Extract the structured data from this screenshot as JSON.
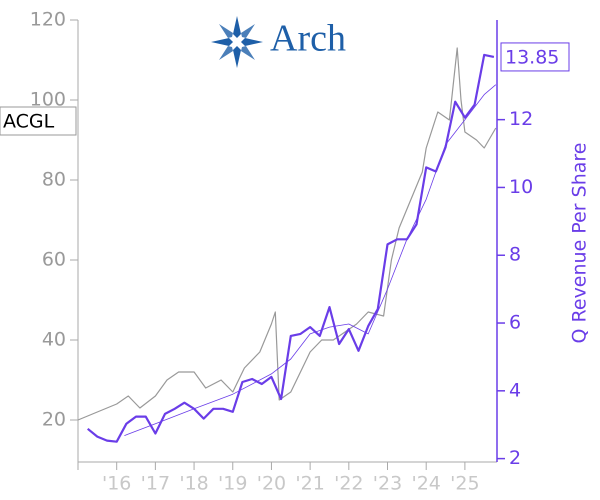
{
  "logo": "Arch",
  "chart_data": {
    "type": "line",
    "y2label": "Q Revenue Per Share",
    "xlim": [
      2015,
      2025.83
    ],
    "xticks": [
      {
        "value": 2015,
        "label": null
      },
      {
        "value": 2016,
        "label": "'16"
      },
      {
        "value": 2017,
        "label": "'17"
      },
      {
        "value": 2018,
        "label": "'18"
      },
      {
        "value": 2019,
        "label": "'19"
      },
      {
        "value": 2020,
        "label": "'20"
      },
      {
        "value": 2021,
        "label": "'21"
      },
      {
        "value": 2022,
        "label": "'22"
      },
      {
        "value": 2023,
        "label": "'23"
      },
      {
        "value": 2024,
        "label": "'24"
      },
      {
        "value": 2025,
        "label": "'25"
      }
    ],
    "ylim": [
      9.5,
      120
    ],
    "yticks": [
      20,
      40,
      60,
      80,
      100,
      120
    ],
    "y2lim": [
      1.9,
      14.94
    ],
    "y2ticks": [
      2,
      4,
      6,
      8,
      10,
      12
    ],
    "series": [
      {
        "name": "ACGL",
        "color": "#999999",
        "width": 1.2,
        "x": [
          2015.0,
          2015.5,
          2016.0,
          2016.3,
          2016.6,
          2017.0,
          2017.3,
          2017.6,
          2018.0,
          2018.3,
          2018.7,
          2019.0,
          2019.3,
          2019.7,
          2020.0,
          2020.1,
          2020.2,
          2020.5,
          2020.8,
          2021.0,
          2021.3,
          2021.6,
          2021.9,
          2022.2,
          2022.5,
          2022.9,
          2023.1,
          2023.3,
          2023.6,
          2023.9,
          2024.0,
          2024.3,
          2024.6,
          2024.8,
          2024.9,
          2025.0,
          2025.3,
          2025.5,
          2025.8
        ],
        "values": [
          20,
          22,
          24,
          26,
          23,
          26,
          30,
          32,
          32,
          28,
          30,
          27,
          33,
          37,
          44,
          47,
          25,
          27,
          33,
          37,
          40,
          40,
          42,
          44,
          47,
          46,
          60,
          68,
          75,
          82,
          88,
          97,
          95,
          113,
          100,
          92,
          90,
          88,
          93
        ]
      },
      {
        "color": "#6a3de8",
        "width": 2.2,
        "axis": "y2",
        "x": [
          2015.25,
          2015.5,
          2015.75,
          2016.0,
          2016.25,
          2016.5,
          2016.75,
          2017.0,
          2017.25,
          2017.5,
          2017.75,
          2018.0,
          2018.25,
          2018.5,
          2018.75,
          2019.0,
          2019.25,
          2019.5,
          2019.75,
          2020.0,
          2020.25,
          2020.5,
          2020.75,
          2021.0,
          2021.25,
          2021.5,
          2021.75,
          2022.0,
          2022.25,
          2022.5,
          2022.75,
          2023.0,
          2023.25,
          2023.5,
          2023.75,
          2024.0,
          2024.25,
          2024.5,
          2024.75,
          2025.0,
          2025.25,
          2025.5,
          2025.75
        ],
        "values": [
          2.88,
          2.65,
          2.53,
          2.5,
          3.03,
          3.24,
          3.24,
          2.74,
          3.32,
          3.47,
          3.65,
          3.47,
          3.18,
          3.47,
          3.47,
          3.38,
          4.26,
          4.35,
          4.2,
          4.41,
          3.76,
          5.62,
          5.68,
          5.88,
          5.62,
          6.47,
          5.38,
          5.82,
          5.18,
          5.91,
          6.41,
          8.32,
          8.47,
          8.47,
          8.91,
          10.59,
          10.47,
          11.18,
          12.53,
          12.06,
          12.44,
          13.91,
          13.85
        ]
      },
      {
        "color": "#6a3de8",
        "width": 0.8,
        "axis": "y2",
        "x": [
          2016.2,
          2017.0,
          2018.0,
          2019.0,
          2020.0,
          2020.5,
          2021.0,
          2021.5,
          2022.0,
          2022.5,
          2023.0,
          2023.5,
          2024.0,
          2024.5,
          2025.0,
          2025.5,
          2025.8
        ],
        "values": [
          2.68,
          3.03,
          3.47,
          3.9,
          4.5,
          4.94,
          5.68,
          5.88,
          5.97,
          5.68,
          7.0,
          8.47,
          9.65,
          11.26,
          12.0,
          12.74,
          13.03
        ]
      }
    ]
  }
}
